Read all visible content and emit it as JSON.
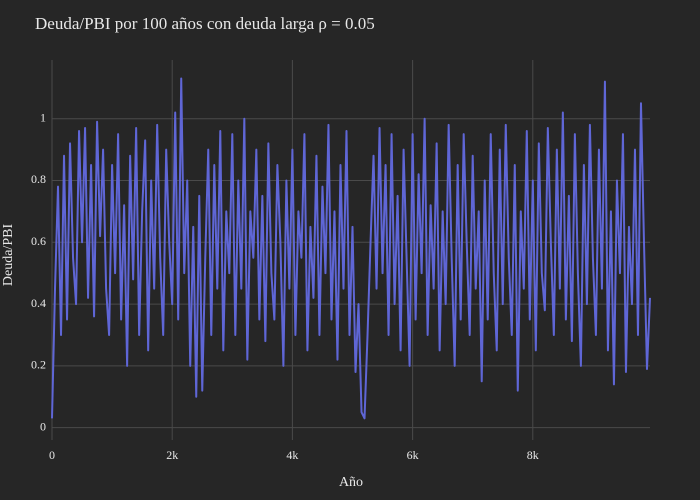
{
  "chart_data": {
    "type": "line",
    "title": "Deuda/PBI por 100 años con deuda larga ρ = 0.05",
    "x_label": "Año",
    "y_label": "Deuda/PBI",
    "x": [
      0,
      50,
      100,
      150,
      200,
      250,
      300,
      350,
      400,
      450,
      500,
      550,
      600,
      650,
      700,
      750,
      800,
      850,
      900,
      950,
      1000,
      1050,
      1100,
      1150,
      1200,
      1250,
      1300,
      1350,
      1400,
      1450,
      1500,
      1550,
      1600,
      1650,
      1700,
      1750,
      1800,
      1850,
      1900,
      1950,
      2000,
      2050,
      2100,
      2150,
      2200,
      2250,
      2300,
      2350,
      2400,
      2450,
      2500,
      2550,
      2600,
      2650,
      2700,
      2750,
      2800,
      2850,
      2900,
      2950,
      3000,
      3050,
      3100,
      3150,
      3200,
      3250,
      3300,
      3350,
      3400,
      3450,
      3500,
      3550,
      3600,
      3650,
      3700,
      3750,
      3800,
      3850,
      3900,
      3950,
      4000,
      4050,
      4100,
      4150,
      4200,
      4250,
      4300,
      4350,
      4400,
      4450,
      4500,
      4550,
      4600,
      4650,
      4700,
      4750,
      4800,
      4850,
      4900,
      4950,
      5000,
      5050,
      5100,
      5150,
      5200,
      5250,
      5300,
      5350,
      5400,
      5450,
      5500,
      5550,
      5600,
      5650,
      5700,
      5750,
      5800,
      5850,
      5900,
      5950,
      6000,
      6050,
      6100,
      6150,
      6200,
      6250,
      6300,
      6350,
      6400,
      6450,
      6500,
      6550,
      6600,
      6650,
      6700,
      6750,
      6800,
      6850,
      6900,
      6950,
      7000,
      7050,
      7100,
      7150,
      7200,
      7250,
      7300,
      7350,
      7400,
      7450,
      7500,
      7550,
      7600,
      7650,
      7700,
      7750,
      7800,
      7850,
      7900,
      7950,
      8000,
      8050,
      8100,
      8150,
      8200,
      8250,
      8300,
      8350,
      8400,
      8450,
      8500,
      8550,
      8600,
      8650,
      8700,
      8750,
      8800,
      8850,
      8900,
      8950,
      9000,
      9050,
      9100,
      9150,
      9200,
      9250,
      9300,
      9350,
      9400,
      9450,
      9500,
      9550,
      9600,
      9650,
      9700,
      9750,
      9800,
      9850,
      9900,
      9950
    ],
    "series": [
      {
        "name": "Deuda/PBI",
        "color": "#5f66d6",
        "values": [
          0.03,
          0.45,
          0.78,
          0.3,
          0.88,
          0.35,
          0.92,
          0.55,
          0.4,
          0.96,
          0.6,
          0.97,
          0.42,
          0.85,
          0.36,
          0.99,
          0.62,
          0.9,
          0.45,
          0.3,
          0.85,
          0.5,
          0.95,
          0.35,
          0.72,
          0.2,
          0.88,
          0.48,
          0.97,
          0.3,
          0.7,
          0.93,
          0.25,
          0.8,
          0.45,
          0.98,
          0.55,
          0.3,
          0.9,
          0.6,
          0.4,
          1.02,
          0.35,
          1.13,
          0.5,
          0.8,
          0.2,
          0.65,
          0.1,
          0.75,
          0.12,
          0.55,
          0.9,
          0.3,
          0.85,
          0.45,
          0.96,
          0.25,
          0.7,
          0.5,
          0.95,
          0.3,
          0.8,
          0.45,
          1.0,
          0.22,
          0.7,
          0.55,
          0.9,
          0.35,
          0.75,
          0.28,
          0.92,
          0.5,
          0.35,
          0.85,
          0.6,
          0.2,
          0.8,
          0.45,
          0.9,
          0.3,
          0.7,
          0.55,
          0.95,
          0.25,
          0.65,
          0.42,
          0.88,
          0.3,
          0.78,
          0.5,
          0.98,
          0.35,
          0.7,
          0.22,
          0.85,
          0.45,
          0.96,
          0.3,
          0.65,
          0.18,
          0.4,
          0.05,
          0.03,
          0.3,
          0.6,
          0.88,
          0.45,
          0.97,
          0.5,
          0.85,
          0.3,
          0.95,
          0.4,
          0.75,
          0.25,
          0.9,
          0.55,
          0.2,
          0.95,
          0.35,
          0.82,
          0.5,
          1.0,
          0.3,
          0.72,
          0.45,
          0.92,
          0.25,
          0.7,
          0.4,
          0.98,
          0.55,
          0.2,
          0.85,
          0.35,
          0.95,
          0.6,
          0.3,
          0.88,
          0.45,
          0.7,
          0.15,
          0.8,
          0.35,
          0.95,
          0.5,
          0.25,
          0.9,
          0.4,
          0.98,
          0.55,
          0.3,
          0.85,
          0.12,
          0.7,
          0.45,
          0.96,
          0.35,
          0.8,
          0.25,
          0.92,
          0.5,
          0.38,
          0.97,
          0.6,
          0.3,
          0.9,
          0.45,
          1.02,
          0.35,
          0.75,
          0.28,
          0.95,
          0.5,
          0.2,
          0.85,
          0.4,
          0.98,
          0.55,
          0.3,
          0.9,
          0.45,
          1.12,
          0.25,
          0.7,
          0.14,
          0.8,
          0.5,
          0.95,
          0.18,
          0.65,
          0.4,
          0.9,
          0.3,
          1.05,
          0.6,
          0.19,
          0.42
        ]
      }
    ],
    "xlim": [
      0,
      9950
    ],
    "ylim": [
      -0.04,
      1.19
    ],
    "xticks": [
      0,
      {
        "value": 2000,
        "label": "2k"
      },
      {
        "value": 4000,
        "label": "4k"
      },
      {
        "value": 6000,
        "label": "6k"
      },
      {
        "value": 8000,
        "label": "8k"
      }
    ],
    "yticks": [
      0,
      0.2,
      0.4,
      0.6,
      0.8,
      1
    ],
    "grid": true
  }
}
